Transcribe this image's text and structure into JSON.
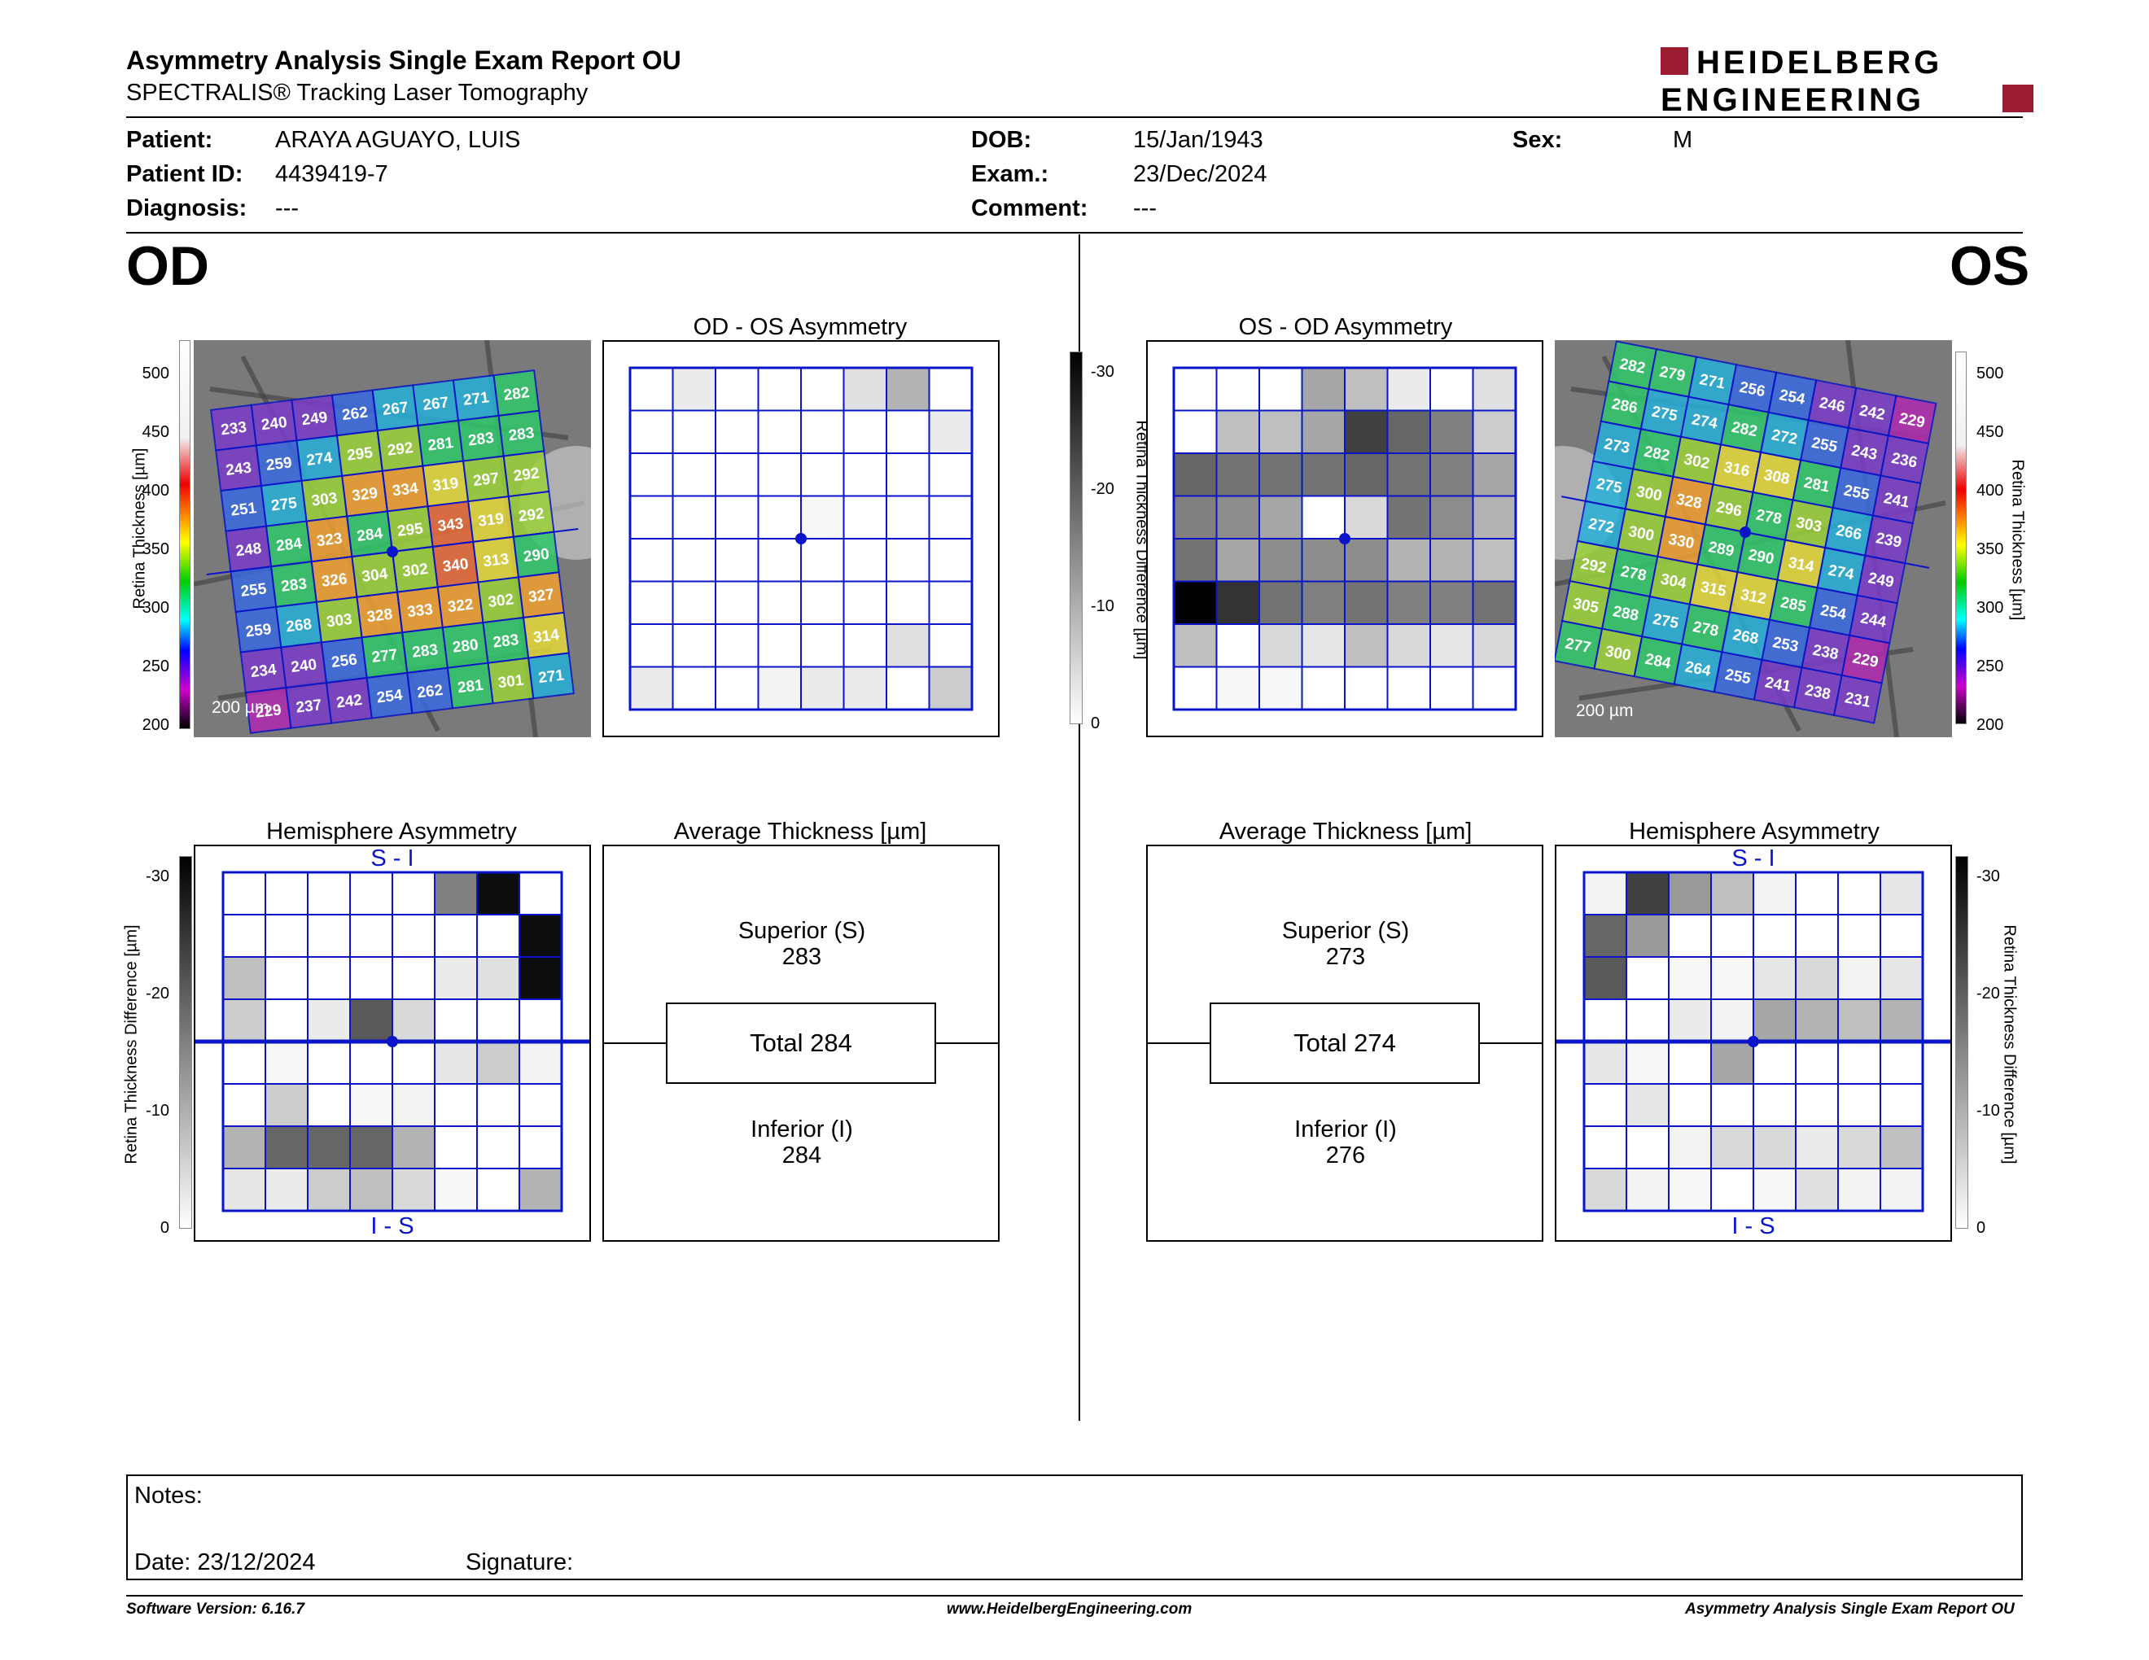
{
  "header": {
    "title": "Asymmetry Analysis Single Exam Report OU",
    "subtitle": "SPECTRALIS® Tracking Laser Tomography",
    "logo_line1": "HEIDELBERG",
    "logo_line2": "ENGINEERING"
  },
  "patient": {
    "patient_label": "Patient:",
    "patient_value": "ARAYA AGUAYO, LUIS",
    "id_label": "Patient ID:",
    "id_value": "4439419-7",
    "diagnosis_label": "Diagnosis:",
    "diagnosis_value": "---",
    "dob_label": "DOB:",
    "dob_value": "15/Jan/1943",
    "exam_label": "Exam.:",
    "exam_value": "23/Dec/2024",
    "comment_label": "Comment:",
    "comment_value": "---",
    "sex_label": "Sex:",
    "sex_value": "M"
  },
  "od": {
    "eye_label": "OD",
    "scale_bar": "200 µm",
    "thickness_grid": [
      [
        233,
        240,
        249,
        262,
        267,
        267,
        271,
        282
      ],
      [
        243,
        259,
        274,
        295,
        292,
        281,
        283,
        283
      ],
      [
        251,
        275,
        303,
        329,
        334,
        319,
        297,
        292
      ],
      [
        248,
        284,
        323,
        284,
        295,
        343,
        319,
        292
      ],
      [
        255,
        283,
        326,
        304,
        302,
        340,
        313,
        290
      ],
      [
        259,
        268,
        303,
        328,
        333,
        322,
        302,
        327
      ],
      [
        234,
        240,
        256,
        277,
        283,
        280,
        283,
        314
      ],
      [
        229,
        237,
        242,
        254,
        262,
        281,
        301,
        271
      ]
    ],
    "asym_title": "OD - OS Asymmetry",
    "asym_shades": [
      [
        0,
        0.08,
        0,
        0,
        0,
        0.12,
        0.3,
        0
      ],
      [
        0,
        0,
        0,
        0,
        0,
        0,
        0,
        0.08
      ],
      [
        0,
        0,
        0,
        0,
        0,
        0,
        0,
        0
      ],
      [
        0,
        0,
        0,
        0,
        0.03,
        0,
        0,
        0
      ],
      [
        0,
        0,
        0,
        0,
        0,
        0,
        0,
        0
      ],
      [
        0,
        0,
        0,
        0,
        0,
        0,
        0,
        0
      ],
      [
        0,
        0,
        0,
        0,
        0,
        0,
        0.12,
        0
      ],
      [
        0.08,
        0,
        0,
        0.05,
        0.08,
        0.08,
        0,
        0.2
      ]
    ],
    "hemi_title": "Hemisphere Asymmetry",
    "hemi_top": "S - I",
    "hemi_bottom": "I - S",
    "hemi_shades": [
      [
        0,
        0,
        0,
        0,
        0,
        0.5,
        0.95,
        0
      ],
      [
        0,
        0,
        0,
        0,
        0,
        0,
        0,
        0.95
      ],
      [
        0.25,
        0,
        0,
        0,
        0,
        0.08,
        0.12,
        0.95
      ],
      [
        0.2,
        0,
        0.08,
        0.65,
        0.15,
        0,
        0,
        0
      ],
      [
        0,
        0.03,
        0,
        0,
        0,
        0.1,
        0.2,
        0.05
      ],
      [
        0,
        0.2,
        0,
        0.03,
        0.05,
        0,
        0,
        0
      ],
      [
        0.3,
        0.6,
        0.6,
        0.6,
        0.3,
        0,
        0,
        0
      ],
      [
        0.1,
        0.08,
        0.2,
        0.25,
        0.15,
        0.03,
        0,
        0.3
      ]
    ],
    "avg_title": "Average Thickness [µm]",
    "superior_label": "Superior (S)",
    "superior_value": "283",
    "total_label": "Total 284",
    "inferior_label": "Inferior (I)",
    "inferior_value": "284"
  },
  "os": {
    "eye_label": "OS",
    "scale_bar": "200 µm",
    "thickness_grid": [
      [
        282,
        279,
        271,
        256,
        254,
        246,
        242,
        229
      ],
      [
        286,
        275,
        274,
        282,
        272,
        255,
        243,
        236
      ],
      [
        273,
        282,
        302,
        316,
        308,
        281,
        255,
        241
      ],
      [
        275,
        300,
        328,
        296,
        278,
        303,
        266,
        239
      ],
      [
        272,
        300,
        330,
        289,
        290,
        314,
        274,
        249
      ],
      [
        292,
        278,
        304,
        315,
        312,
        285,
        254,
        244
      ],
      [
        305,
        288,
        275,
        278,
        268,
        253,
        238,
        229
      ],
      [
        277,
        300,
        284,
        264,
        255,
        241,
        238,
        231
      ]
    ],
    "asym_title": "OS - OD Asymmetry",
    "asym_shades": [
      [
        0,
        0,
        0,
        0.35,
        0.25,
        0.08,
        0,
        0.12
      ],
      [
        0,
        0.25,
        0.25,
        0.35,
        0.75,
        0.6,
        0.5,
        0.2
      ],
      [
        0.6,
        0.55,
        0.55,
        0.55,
        0.6,
        0.55,
        0.5,
        0.35
      ],
      [
        0.5,
        0.45,
        0.35,
        0,
        0.15,
        0.55,
        0.45,
        0.3
      ],
      [
        0.55,
        0.35,
        0.45,
        0.45,
        0.45,
        0.3,
        0.3,
        0.25
      ],
      [
        1.0,
        0.8,
        0.55,
        0.5,
        0.55,
        0.5,
        0.5,
        0.55
      ],
      [
        0.25,
        0,
        0.15,
        0.1,
        0.25,
        0.15,
        0.1,
        0.15
      ],
      [
        0,
        0.03,
        0.03,
        0,
        0,
        0,
        0,
        0
      ]
    ],
    "hemi_title": "Hemisphere Asymmetry",
    "hemi_top": "S - I",
    "hemi_bottom": "I - S",
    "hemi_shades": [
      [
        0.05,
        0.75,
        0.4,
        0.25,
        0.05,
        0,
        0,
        0.1
      ],
      [
        0.6,
        0.4,
        0,
        0,
        0,
        0,
        0,
        0
      ],
      [
        0.65,
        0,
        0.03,
        0.03,
        0.1,
        0.15,
        0.05,
        0.1
      ],
      [
        0,
        0,
        0.08,
        0.05,
        0.35,
        0.3,
        0.25,
        0.3
      ],
      [
        0.1,
        0.03,
        0,
        0.35,
        0,
        0,
        0,
        0
      ],
      [
        0,
        0.1,
        0,
        0,
        0,
        0,
        0,
        0
      ],
      [
        0,
        0,
        0.05,
        0.15,
        0.15,
        0.08,
        0.15,
        0.25
      ],
      [
        0.15,
        0.05,
        0.03,
        0,
        0.03,
        0.12,
        0.05,
        0.05
      ]
    ],
    "avg_title": "Average Thickness [µm]",
    "superior_label": "Superior (S)",
    "superior_value": "273",
    "total_label": "Total 274",
    "inferior_label": "Inferior (I)",
    "inferior_value": "276"
  },
  "scales": {
    "thickness_label": "Retina  Thickness [µm]",
    "thickness_ticks": [
      "500",
      "450",
      "400",
      "350",
      "300",
      "250",
      "200"
    ],
    "diff_label": "Retina Thickness Difference [µm]",
    "diff_ticks": [
      "-30",
      "-20",
      "-10",
      "0"
    ]
  },
  "notes": {
    "notes_label": "Notes:",
    "date_label": "Date: 23/12/2024",
    "signature_label": "Signature:"
  },
  "footer": {
    "software": "Software Version: 6.16.7",
    "website": "www.HeidelbergEngineering.com",
    "report": "Asymmetry Analysis Single Exam Report OU"
  },
  "colors": {
    "grid_blue": "#0a14c8",
    "logo_red": "#9b1b30"
  }
}
